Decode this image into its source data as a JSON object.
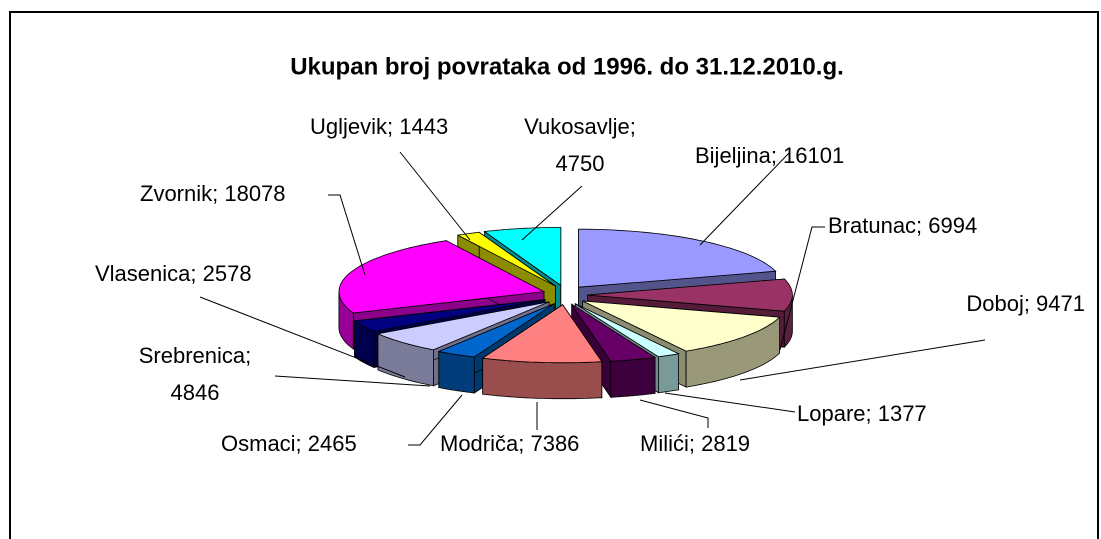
{
  "chart_data": {
    "type": "pie3d",
    "title": "Ukupan broj povrataka od 1996. do 31.12.2010.g.",
    "values": [
      16101,
      6994,
      9471,
      1377,
      2819,
      7386,
      2465,
      4846,
      2578,
      18078,
      1443,
      4750
    ],
    "value_labels": [
      "Bijeljina; 16101",
      "Bratunac; 6994",
      "Doboj; 9471",
      "Lopare; 1377",
      "Milići; 2819",
      "Modriča; 7386",
      "Osmaci; 2465",
      "Srebrenica; 4846",
      "Vlasenica; 2578",
      "Zvornik; 18078",
      "Ugljevik; 1443",
      "Vukosavlje; 4750"
    ],
    "colors": [
      "#9999ff",
      "#993366",
      "#ffffcc",
      "#ccffff",
      "#660066",
      "#ff8080",
      "#0066cc",
      "#ccccff",
      "#000080",
      "#ff00ff",
      "#ffff00",
      "#00ffff"
    ]
  }
}
